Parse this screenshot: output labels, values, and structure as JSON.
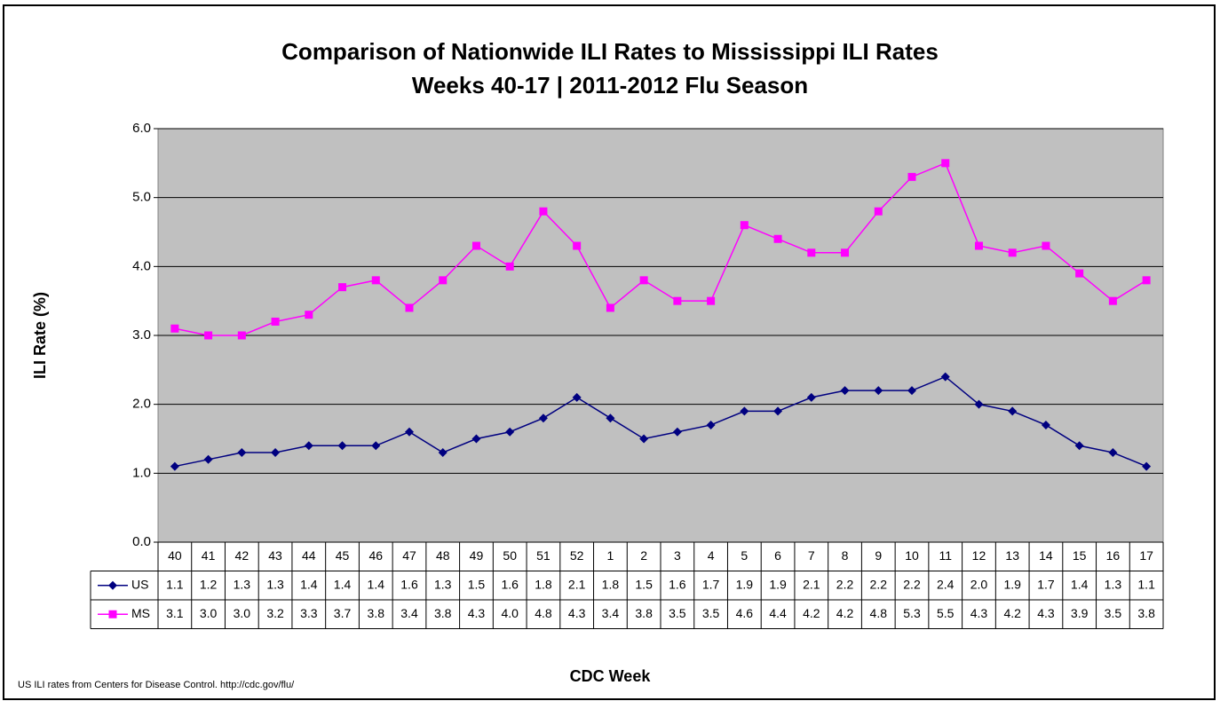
{
  "chart_data": {
    "type": "line",
    "title": "Comparison of Nationwide ILI Rates to Mississippi ILI Rates",
    "subtitle": "Weeks 40-17 | 2011-2012 Flu Season",
    "y_label": "ILI Rate (%)",
    "x_label": "CDC Week",
    "footnote": "US ILI rates from Centers for Disease Control. http://cdc.gov/flu/",
    "categories": [
      "40",
      "41",
      "42",
      "43",
      "44",
      "45",
      "46",
      "47",
      "48",
      "49",
      "50",
      "51",
      "52",
      "1",
      "2",
      "3",
      "4",
      "5",
      "6",
      "7",
      "8",
      "9",
      "10",
      "11",
      "12",
      "13",
      "14",
      "15",
      "16",
      "17"
    ],
    "series": [
      {
        "name": "US",
        "color": "#000080",
        "marker": "diamond",
        "values": [
          1.1,
          1.2,
          1.3,
          1.3,
          1.4,
          1.4,
          1.4,
          1.6,
          1.3,
          1.5,
          1.6,
          1.8,
          2.1,
          1.8,
          1.5,
          1.6,
          1.7,
          1.9,
          1.9,
          2.1,
          2.2,
          2.2,
          2.2,
          2.4,
          2.0,
          1.9,
          1.7,
          1.4,
          1.3,
          1.1
        ],
        "value_labels": [
          "1.1",
          "1.2",
          "1.3",
          "1.3",
          "1.4",
          "1.4",
          "1.4",
          "1.6",
          "1.3",
          "1.5",
          "1.6",
          "1.8",
          "2.1",
          "1.8",
          "1.5",
          "1.6",
          "1.7",
          "1.9",
          "1.9",
          "2.1",
          "2.2",
          "2.2",
          "2.2",
          "2.4",
          "2.0",
          "1.9",
          "1.7",
          "1.4",
          "1.3",
          "1.1"
        ]
      },
      {
        "name": "MS",
        "color": "#ff00ff",
        "marker": "square",
        "values": [
          3.1,
          3.0,
          3.0,
          3.2,
          3.3,
          3.7,
          3.8,
          3.4,
          3.8,
          4.3,
          4.0,
          4.8,
          4.3,
          3.4,
          3.8,
          3.5,
          3.5,
          4.6,
          4.4,
          4.2,
          4.2,
          4.8,
          5.3,
          5.5,
          4.3,
          4.2,
          4.3,
          3.9,
          3.5,
          3.8
        ],
        "value_labels": [
          "3.1",
          "3.0",
          "3.0",
          "3.2",
          "3.3",
          "3.7",
          "3.8",
          "3.4",
          "3.8",
          "4.3",
          "4.0",
          "4.8",
          "4.3",
          "3.4",
          "3.8",
          "3.5",
          "3.5",
          "4.6",
          "4.4",
          "4.2",
          "4.2",
          "4.8",
          "5.3",
          "5.5",
          "4.3",
          "4.2",
          "4.3",
          "3.9",
          "3.5",
          "3.8"
        ]
      }
    ],
    "ylim": [
      0,
      6
    ],
    "yticks": [
      {
        "value": 0,
        "label": "0.0"
      },
      {
        "value": 1,
        "label": "1.0"
      },
      {
        "value": 2,
        "label": "2.0"
      },
      {
        "value": 3,
        "label": "3.0"
      },
      {
        "value": 4,
        "label": "4.0"
      },
      {
        "value": 5,
        "label": "5.0"
      },
      {
        "value": 6,
        "label": "6.0"
      }
    ],
    "grid": true,
    "plot_background": "#c0c0c0"
  }
}
